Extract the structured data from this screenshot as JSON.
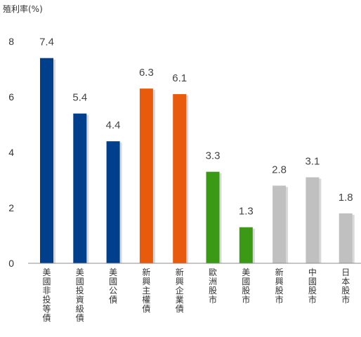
{
  "chart_data": {
    "type": "bar",
    "ylabel": "殖利率(%)",
    "ylim": [
      0,
      8
    ],
    "yticks": [
      0,
      2,
      4,
      6,
      8
    ],
    "grid": false,
    "categories": [
      "美國非投等債",
      "美國投資級債",
      "美國公債",
      "新興主權債",
      "新興企業債",
      "歐洲股市",
      "美國股市",
      "新興股市",
      "中國股市",
      "日本股市"
    ],
    "values": [
      7.4,
      5.4,
      4.4,
      6.3,
      6.1,
      3.3,
      1.3,
      2.8,
      3.1,
      1.8
    ],
    "value_labels": [
      "7.4",
      "5.4",
      "4.4",
      "6.3",
      "6.1",
      "3.3",
      "1.3",
      "2.8",
      "3.1",
      "1.8"
    ],
    "bar_colors": [
      "#003f8c",
      "#003f8c",
      "#003f8c",
      "#e85b0c",
      "#e85b0c",
      "#3a9a16",
      "#3a9a16",
      "#c0c0c0",
      "#c0c0c0",
      "#c0c0c0"
    ],
    "shadow_color": "#d9d9d9",
    "axis_color": "#8c8c8c"
  }
}
